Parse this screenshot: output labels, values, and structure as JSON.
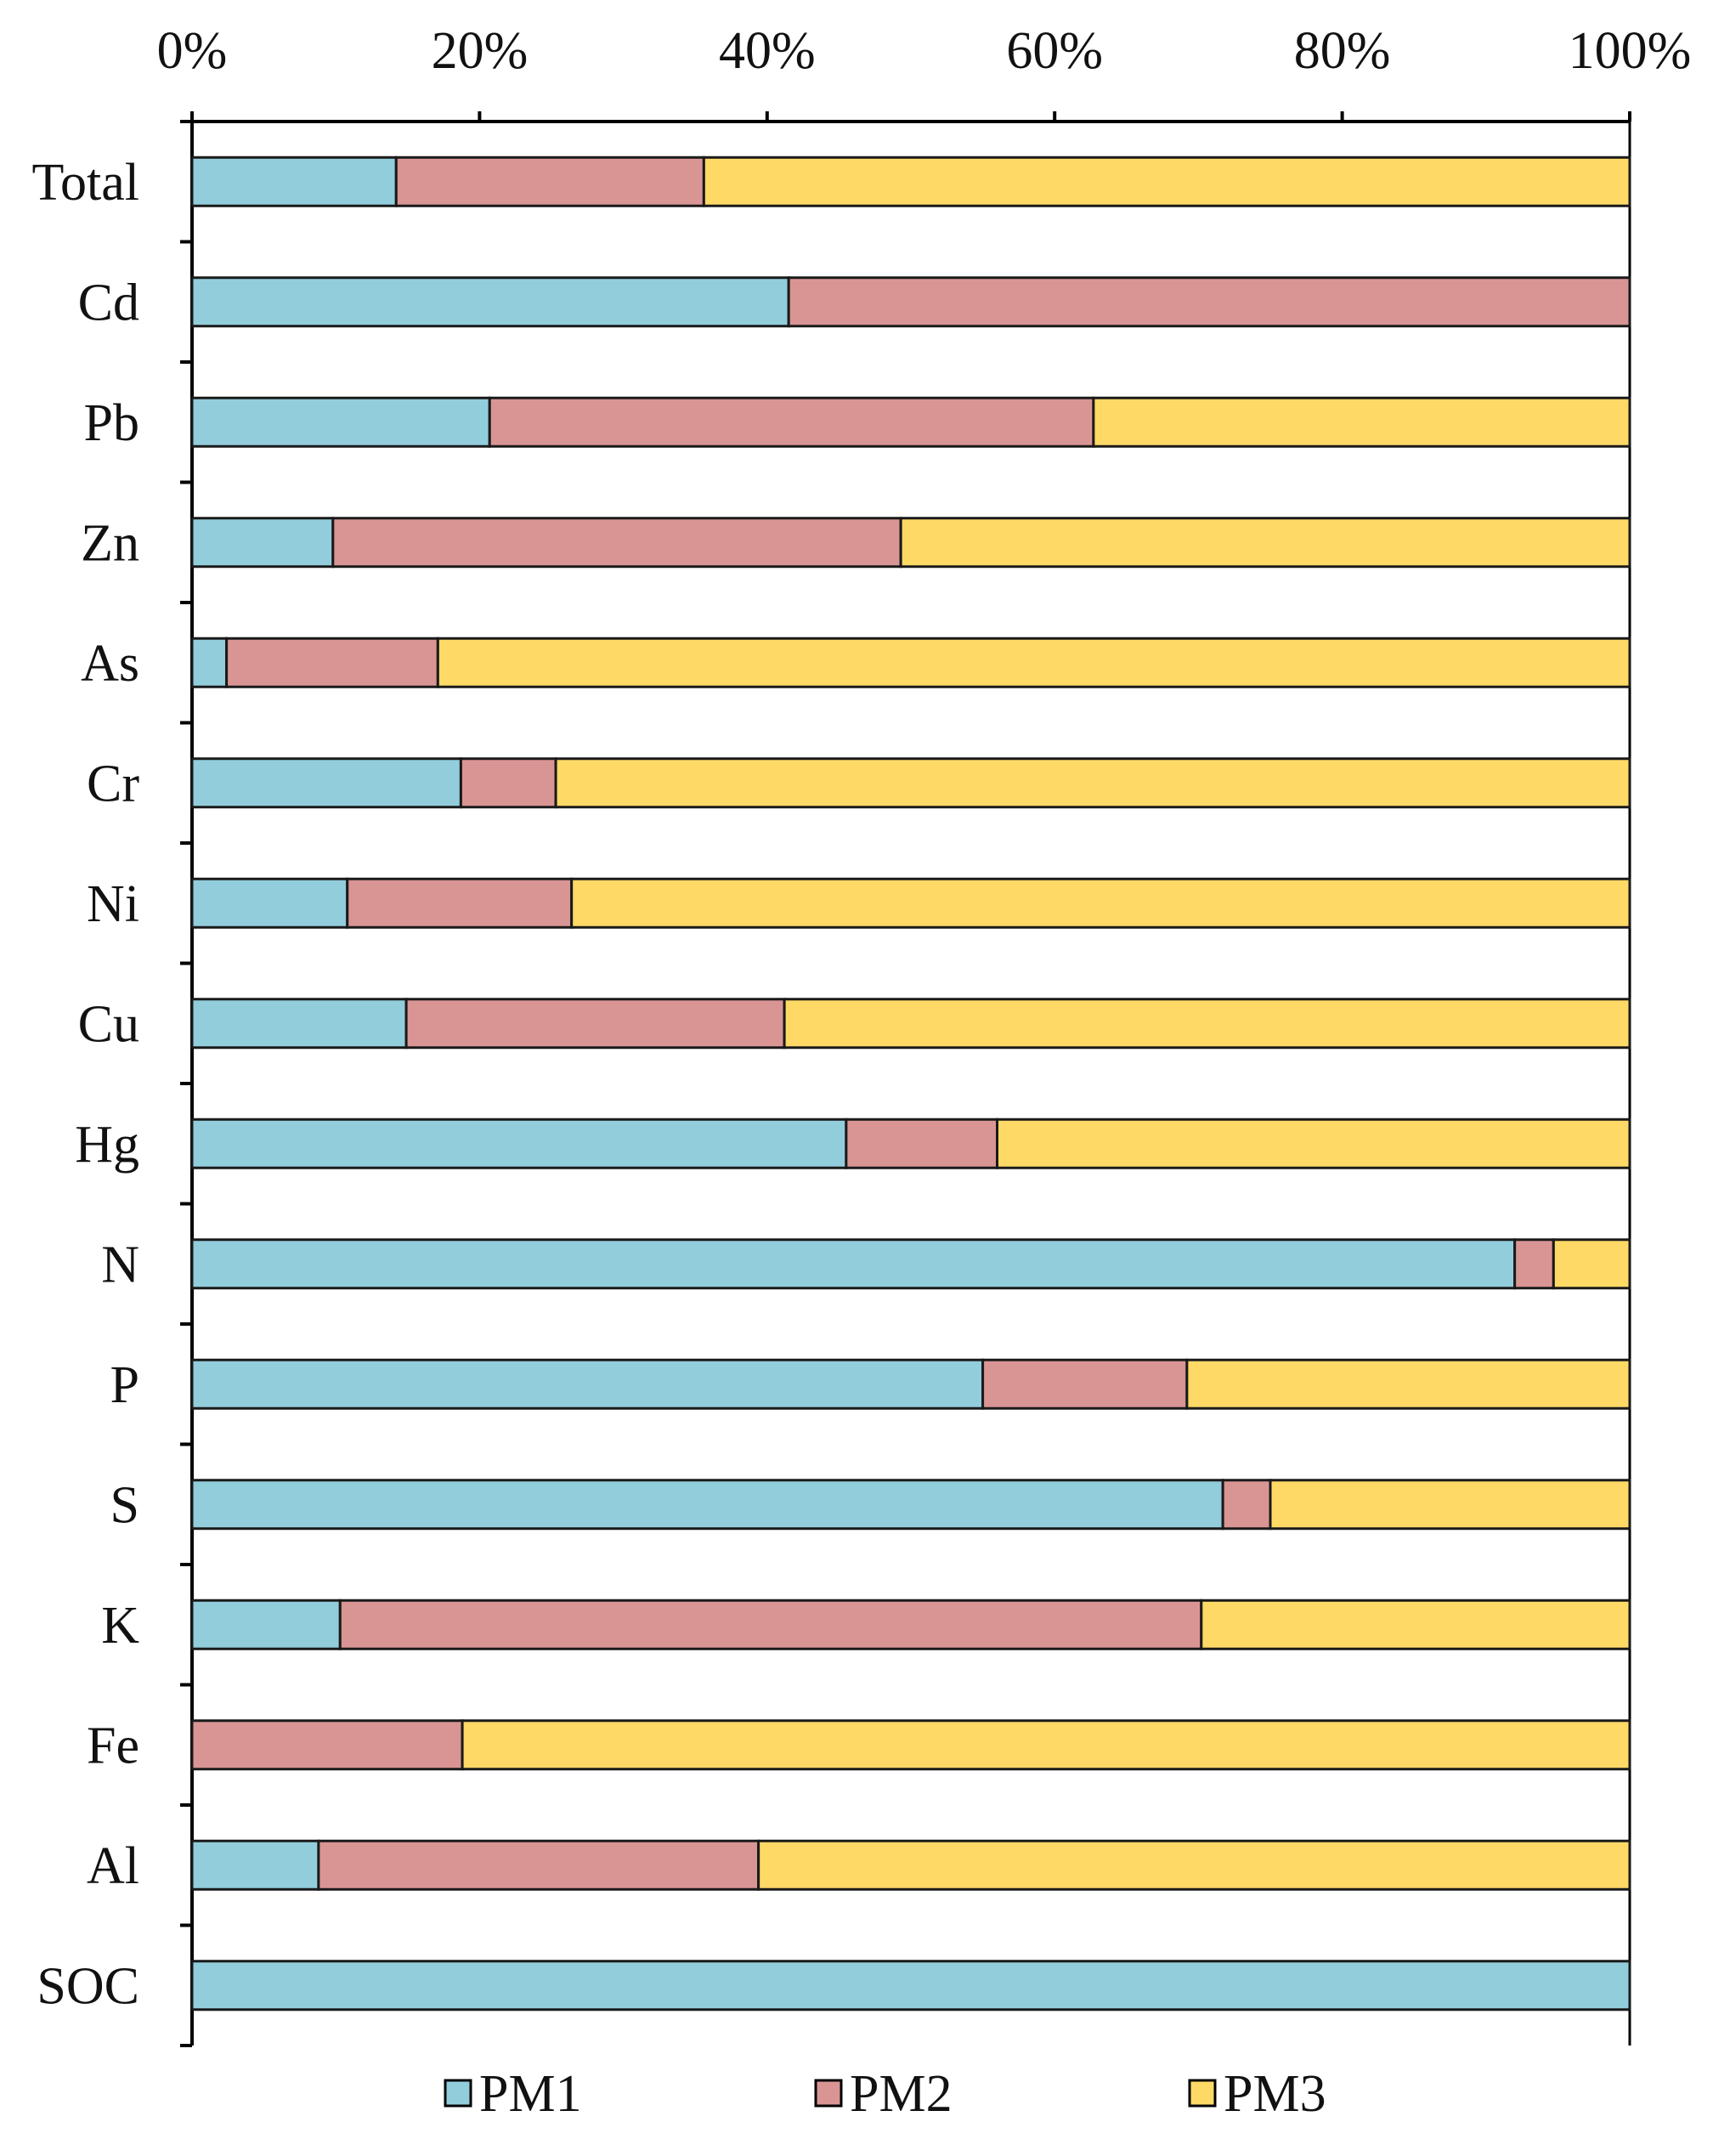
{
  "chart_data": {
    "type": "bar",
    "orientation": "horizontal",
    "stacked": true,
    "normalized": true,
    "title": "",
    "xlabel": "",
    "ylabel": "",
    "xlim": [
      0,
      100
    ],
    "x_ticks": [
      "0%",
      "20%",
      "40%",
      "60%",
      "80%",
      "100%"
    ],
    "x_tick_values": [
      0,
      20,
      40,
      60,
      80,
      100
    ],
    "x_axis_position": "top",
    "grid": false,
    "legend_position": "bottom",
    "categories": [
      "Total",
      "Cd",
      "Pb",
      "Zn",
      "As",
      "Cr",
      "Ni",
      "Cu",
      "Hg",
      "N",
      "P",
      "S",
      "K",
      "Fe",
      "Al",
      "SOC"
    ],
    "series": [
      {
        "name": "PM1",
        "color": "#92cddc",
        "values": [
          14.2,
          41.5,
          20.7,
          9.8,
          2.4,
          18.7,
          10.8,
          14.9,
          45.5,
          92.0,
          55.0,
          71.7,
          10.3,
          0.0,
          8.8,
          100.0
        ]
      },
      {
        "name": "PM2",
        "color": "#d99594",
        "values": [
          21.4,
          58.5,
          42.0,
          39.5,
          14.7,
          6.6,
          15.6,
          26.3,
          10.5,
          2.7,
          14.2,
          3.3,
          59.9,
          18.8,
          30.6,
          0.0
        ]
      },
      {
        "name": "PM3",
        "color": "#ffd966",
        "values": [
          64.4,
          0.0,
          37.3,
          50.7,
          82.9,
          74.7,
          73.6,
          58.8,
          44.0,
          5.3,
          30.8,
          25.0,
          29.8,
          81.2,
          60.6,
          0.0
        ]
      }
    ]
  }
}
